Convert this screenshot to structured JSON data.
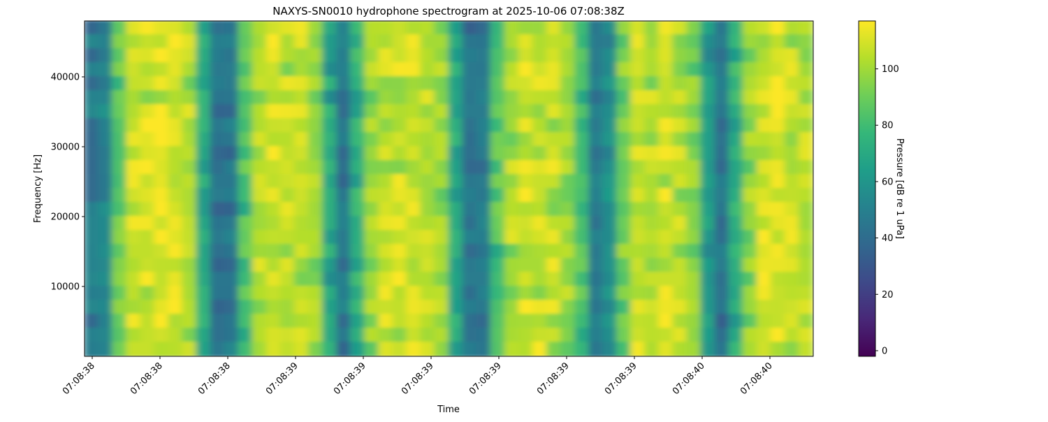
{
  "chart_data": {
    "type": "heatmap",
    "title": "NAXYS-SN0010 hydrophone spectrogram at 2025-10-06 07:08:38Z",
    "xlabel": "Time",
    "ylabel": "Frequency [Hz]",
    "x_tick_labels": [
      "07:08:38",
      "07:08:38",
      "07:08:38",
      "07:08:39",
      "07:08:39",
      "07:08:39",
      "07:08:39",
      "07:08:39",
      "07:08:39",
      "07:08:40",
      "07:08:40"
    ],
    "y_ticks": [
      10000,
      20000,
      30000,
      40000
    ],
    "ylim": [
      0,
      48000
    ],
    "colormap": "viridis",
    "colorbar": {
      "label": "Pressure [dB re 1 uPa]",
      "ticks": [
        0,
        20,
        40,
        60,
        80,
        100
      ],
      "range": [
        -2,
        117
      ]
    },
    "frequency_bin_hz": 2000,
    "column_level_db": [
      50,
      55,
      90,
      108,
      110,
      112,
      110,
      105,
      70,
      45,
      48,
      85,
      105,
      110,
      108,
      108,
      100,
      70,
      48,
      75,
      100,
      108,
      110,
      110,
      105,
      100,
      70,
      45,
      48,
      85,
      105,
      110,
      110,
      108,
      100,
      85,
      50,
      60,
      95,
      108,
      105,
      110,
      105,
      95,
      65,
      45,
      75,
      100,
      110,
      112,
      108,
      105
    ]
  }
}
